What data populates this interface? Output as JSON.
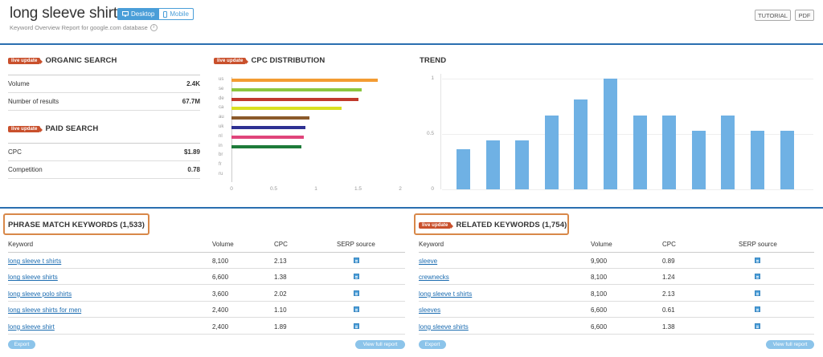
{
  "header": {
    "title": "long sleeve shirt",
    "desktop_label": "Desktop",
    "mobile_label": "Mobile",
    "subtitle": "Keyword Overview Report for google.com database",
    "tutorial_label": "TUTORIAL",
    "pdf_label": "PDF"
  },
  "badge_label": "live update",
  "organic": {
    "title": "ORGANIC SEARCH",
    "rows": [
      {
        "label": "Volume",
        "value": "2.4K"
      },
      {
        "label": "Number of results",
        "value": "67.7M"
      }
    ]
  },
  "paid": {
    "title": "PAID SEARCH",
    "rows": [
      {
        "label": "CPC",
        "value": "$1.89"
      },
      {
        "label": "Competition",
        "value": "0.78"
      }
    ]
  },
  "cpc_distribution": {
    "title": "CPC DISTRIBUTION"
  },
  "trend": {
    "title": "TREND"
  },
  "chart_data": [
    {
      "type": "bar",
      "orientation": "horizontal",
      "title": "CPC DISTRIBUTION",
      "categories": [
        "us",
        "se",
        "de",
        "ca",
        "au",
        "uk",
        "nl",
        "in",
        "br",
        "fr",
        "ru"
      ],
      "values": [
        1.73,
        1.54,
        1.5,
        1.3,
        0.92,
        0.88,
        0.86,
        0.83,
        0,
        0,
        0
      ],
      "colors": [
        "#f39c33",
        "#8cc63e",
        "#c0392b",
        "#d9e021",
        "#8b5a2b",
        "#2e3192",
        "#e0457b",
        "#1e7b3a",
        "#999999",
        "#999999",
        "#999999"
      ],
      "xticks": [
        "0",
        "0.5",
        "1",
        "1.5",
        "2"
      ],
      "xlim": [
        0,
        2
      ]
    },
    {
      "type": "bar",
      "title": "TREND",
      "values": [
        0.36,
        0.44,
        0.44,
        0.67,
        0.81,
        1.0,
        0.67,
        0.67,
        0.53,
        0.67,
        0.53,
        0.53
      ],
      "yticks": [
        "0",
        "0.5",
        "1"
      ],
      "ylim": [
        0,
        1
      ],
      "color": "#6fb1e4"
    }
  ],
  "phrase_match": {
    "title": "PHRASE MATCH KEYWORDS (1,533)",
    "headers": {
      "keyword": "Keyword",
      "volume": "Volume",
      "cpc": "CPC",
      "serp": "SERP source"
    },
    "rows": [
      {
        "kw": "long sleeve t shirts",
        "vol": "8,100",
        "cpc": "2.13"
      },
      {
        "kw": "long sleeve shirts",
        "vol": "6,600",
        "cpc": "1.38"
      },
      {
        "kw": "long sleeve polo shirts",
        "vol": "3,600",
        "cpc": "2.02"
      },
      {
        "kw": "long sleeve shirts for men",
        "vol": "2,400",
        "cpc": "1.10"
      },
      {
        "kw": "long sleeve shirt",
        "vol": "2,400",
        "cpc": "1.89"
      }
    ],
    "export_label": "Export",
    "full_report_label": "View full report"
  },
  "related": {
    "title": "RELATED KEYWORDS (1,754)",
    "headers": {
      "keyword": "Keyword",
      "volume": "Volume",
      "cpc": "CPC",
      "serp": "SERP source"
    },
    "rows": [
      {
        "kw": "sleeve",
        "vol": "9,900",
        "cpc": "0.89"
      },
      {
        "kw": "crewnecks",
        "vol": "8,100",
        "cpc": "1.24"
      },
      {
        "kw": "long sleeve t shirts",
        "vol": "8,100",
        "cpc": "2.13"
      },
      {
        "kw": "sleeves",
        "vol": "6,600",
        "cpc": "0.61"
      },
      {
        "kw": "long sleeve shirts",
        "vol": "6,600",
        "cpc": "1.38"
      }
    ],
    "export_label": "Export",
    "full_report_label": "View full report"
  },
  "colors": {
    "accent": "#2a6fb0",
    "badge": "#c9502c",
    "highlight_box": "#d88849",
    "link": "#1a6bb0",
    "trend_bar": "#6fb1e4"
  },
  "icons": {
    "desktop": "monitor-icon",
    "mobile": "phone-icon",
    "info": "info-icon",
    "serp": "serp-snapshot-icon"
  }
}
